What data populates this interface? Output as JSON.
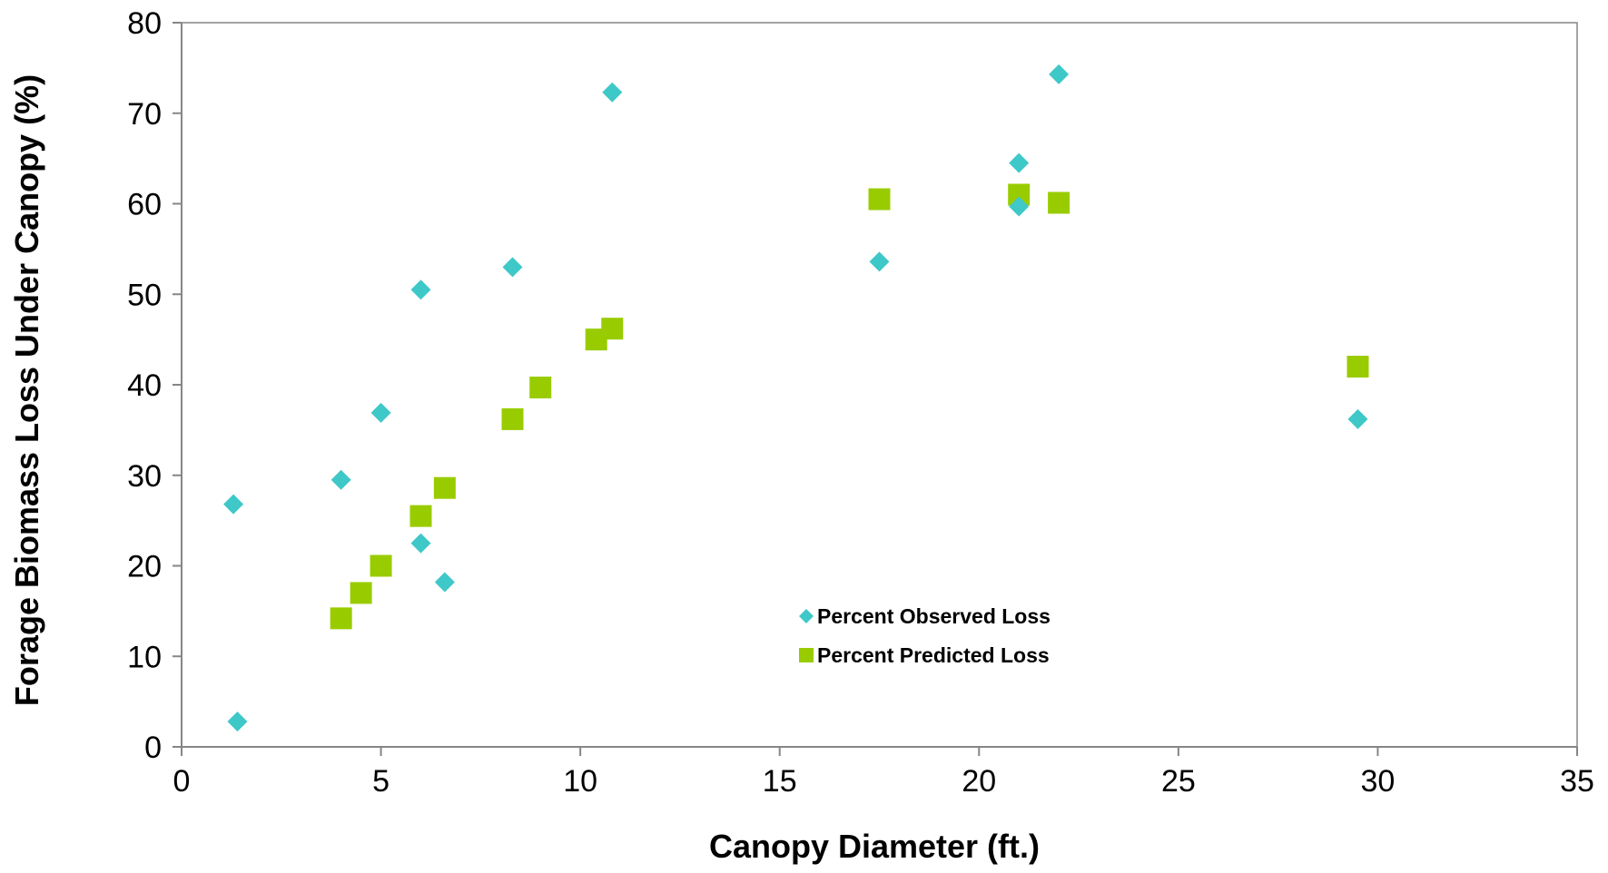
{
  "chart_data": {
    "type": "scatter",
    "title": "",
    "xlabel": "Canopy Diameter (ft.)",
    "ylabel": "Forage Biomass Loss Under Canopy (%)",
    "xlim": [
      0,
      35
    ],
    "ylim": [
      0,
      80
    ],
    "xticks": [
      0,
      5,
      10,
      15,
      20,
      25,
      30,
      35
    ],
    "yticks": [
      0,
      10,
      20,
      30,
      40,
      50,
      60,
      70,
      80
    ],
    "grid": false,
    "legend_position": "lower-center",
    "series": [
      {
        "name": "Percent Observed Loss",
        "marker": "diamond",
        "color": "#3ec8c8",
        "points": [
          {
            "x": 1.3,
            "y": 26.8
          },
          {
            "x": 1.4,
            "y": 2.8
          },
          {
            "x": 4.0,
            "y": 29.5
          },
          {
            "x": 5.0,
            "y": 36.9
          },
          {
            "x": 6.0,
            "y": 50.5
          },
          {
            "x": 6.0,
            "y": 22.5
          },
          {
            "x": 6.6,
            "y": 18.2
          },
          {
            "x": 8.3,
            "y": 53.0
          },
          {
            "x": 10.8,
            "y": 72.3
          },
          {
            "x": 17.5,
            "y": 53.6
          },
          {
            "x": 21.0,
            "y": 64.5
          },
          {
            "x": 21.0,
            "y": 59.7
          },
          {
            "x": 22.0,
            "y": 74.3
          },
          {
            "x": 29.5,
            "y": 36.2
          }
        ]
      },
      {
        "name": "Percent Predicted Loss",
        "marker": "square",
        "color": "#99cc00",
        "points": [
          {
            "x": 4.0,
            "y": 14.2
          },
          {
            "x": 4.5,
            "y": 17.0
          },
          {
            "x": 5.0,
            "y": 20.0
          },
          {
            "x": 6.0,
            "y": 25.5
          },
          {
            "x": 6.6,
            "y": 28.6
          },
          {
            "x": 8.3,
            "y": 36.2
          },
          {
            "x": 9.0,
            "y": 39.7
          },
          {
            "x": 10.4,
            "y": 45.0
          },
          {
            "x": 10.8,
            "y": 46.2
          },
          {
            "x": 17.5,
            "y": 60.5
          },
          {
            "x": 21.0,
            "y": 61.0
          },
          {
            "x": 22.0,
            "y": 60.1
          },
          {
            "x": 29.5,
            "y": 42.0
          }
        ]
      }
    ]
  }
}
